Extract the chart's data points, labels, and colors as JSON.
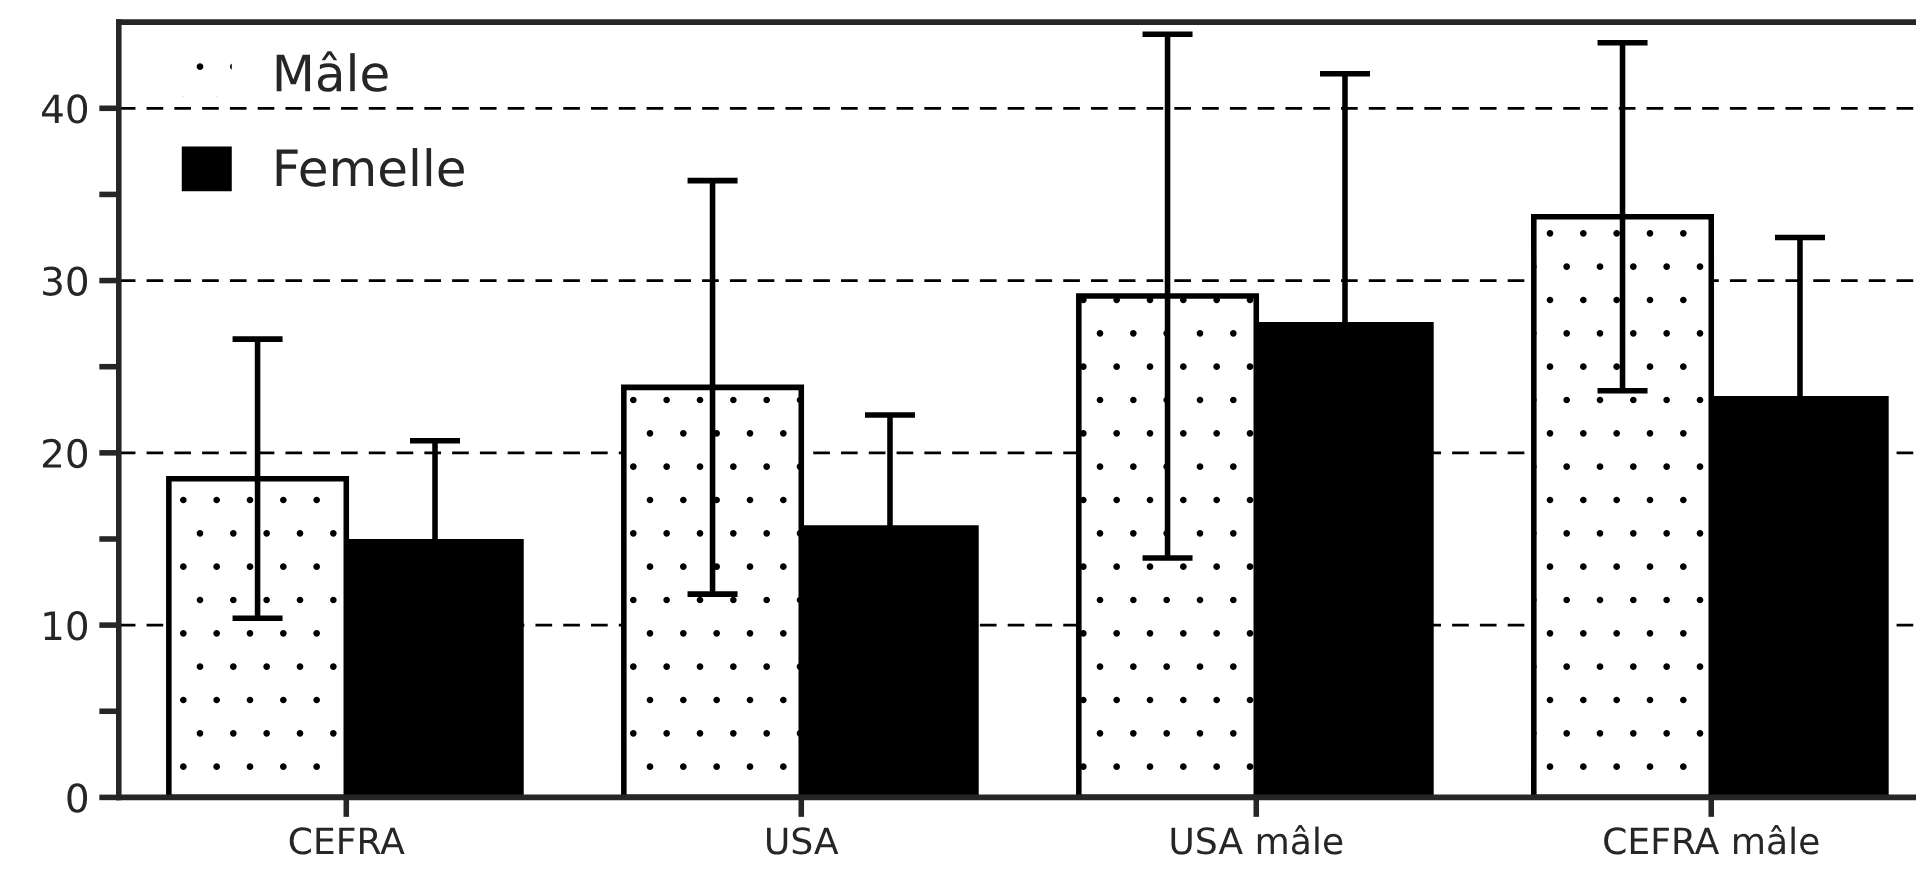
{
  "chart_data": {
    "type": "bar",
    "categories": [
      "CEFRA",
      "USA",
      "USA mâle",
      "CEFRA mâle"
    ],
    "series": [
      {
        "name": "Mâle",
        "color": "#ffffff",
        "values": [
          18.5,
          23.8,
          29.1,
          33.7
        ],
        "errors": [
          8.1,
          12,
          15.2,
          10.1
        ]
      },
      {
        "name": "Femelle",
        "color": "#000000",
        "values": [
          15.0,
          15.8,
          27.6,
          23.3
        ],
        "errors": [
          5.7,
          6.4,
          14.4,
          9.2
        ]
      }
    ],
    "ylim": [
      0,
      45
    ],
    "yticks": [
      0,
      {
        "value": 5,
        "label": null
      },
      10,
      {
        "value": 15,
        "label": null
      },
      20,
      {
        "value": 25,
        "label": null
      },
      30,
      {
        "value": 35,
        "label": null
      },
      40
    ],
    "grid": "y",
    "legend": "top left"
  }
}
